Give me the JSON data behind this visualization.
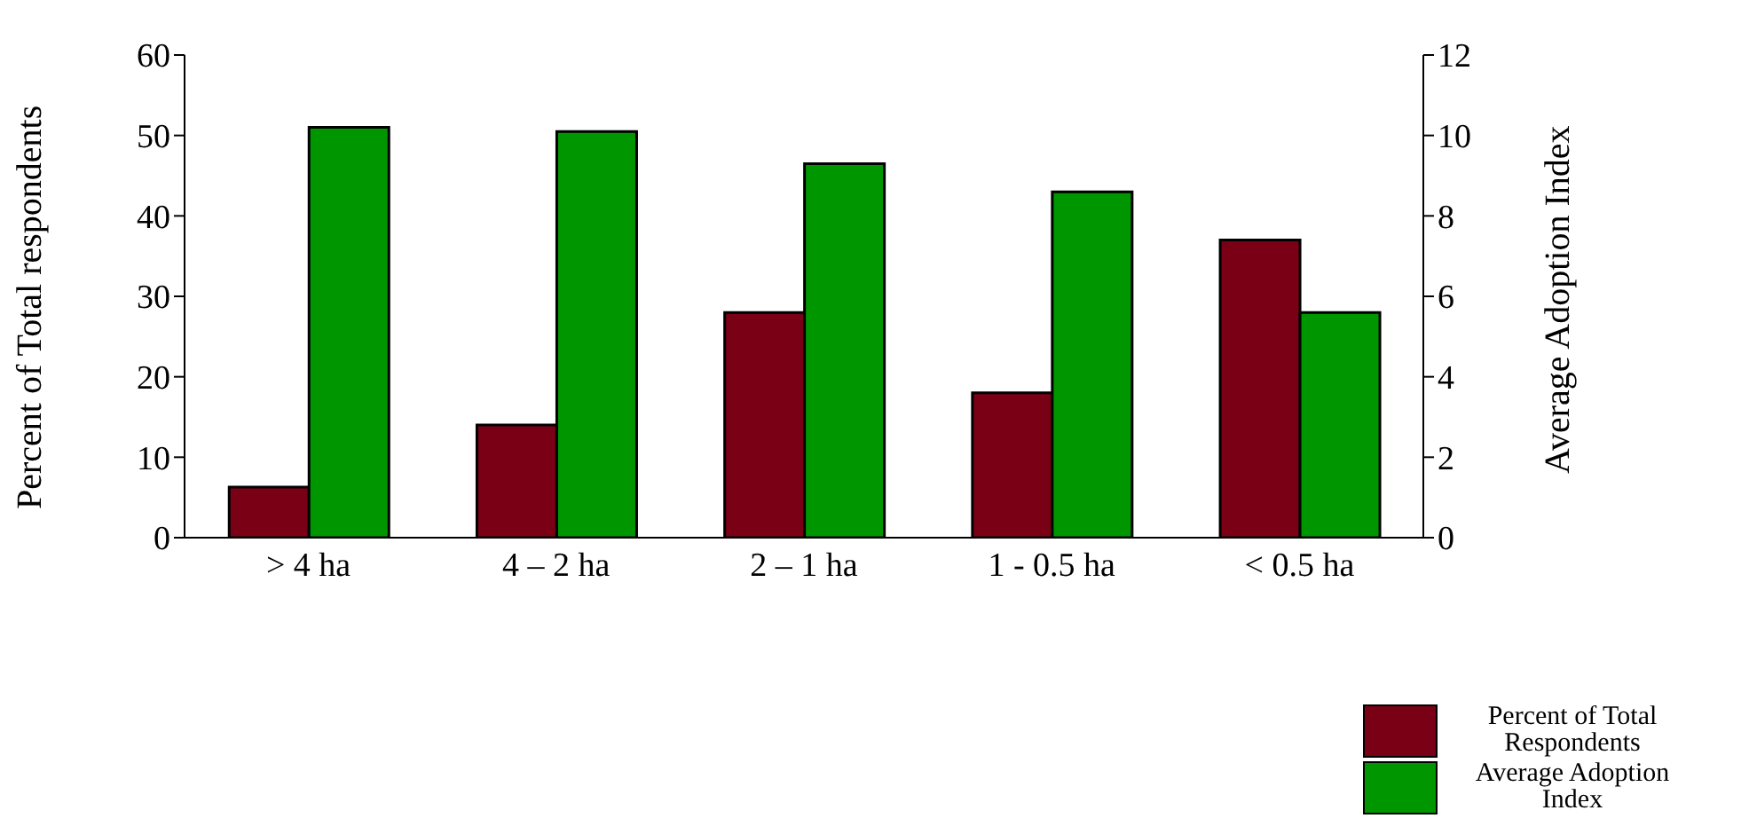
{
  "chart_data": {
    "type": "bar",
    "categories": [
      "> 4 ha",
      "4 – 2 ha",
      "2 – 1 ha",
      "1 - 0.5 ha",
      "< 0.5 ha"
    ],
    "ylabel": "Percent of Total respondents",
    "y2label": "Average Adoption Index",
    "series": [
      {
        "name": "Percent of Total Respondents",
        "color": "#7a0016",
        "values": [
          6.3,
          14,
          28,
          18,
          37
        ]
      },
      {
        "name": "Average Adoption Index",
        "color": "#009600",
        "axis": "y2",
        "values": [
          10.2,
          10.1,
          9.3,
          8.6,
          5.6
        ]
      }
    ],
    "ylim": [
      0,
      60
    ],
    "yticks": [
      0,
      10,
      20,
      30,
      40,
      50,
      60
    ],
    "y2lim": [
      0,
      12
    ],
    "y2ticks": [
      0,
      2,
      4,
      6,
      8,
      10,
      12
    ],
    "grid": false,
    "legend": "bottom right"
  }
}
